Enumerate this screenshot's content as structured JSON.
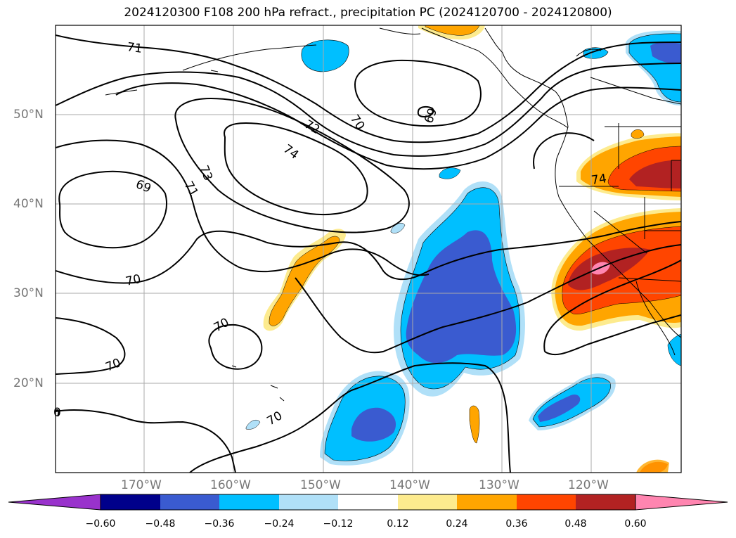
{
  "title": "2024120300 F108 200 hPa refract., precipitation PC (2024120700 - 2024120800)",
  "lat_labels": [
    "50°N",
    "40°N",
    "30°N",
    "20°N"
  ],
  "lon_labels": [
    "170°W",
    "160°W",
    "150°W",
    "140°W",
    "130°W",
    "120°W"
  ],
  "contour_labels": [
    "71",
    "72",
    "73",
    "74",
    "70",
    "69",
    "71",
    "69",
    "70",
    "70",
    "70",
    "70",
    "74",
    "0"
  ],
  "colorbar": {
    "ticks": [
      "−0.60",
      "−0.48",
      "−0.36",
      "−0.24",
      "−0.12",
      "0.12",
      "0.24",
      "0.36",
      "0.48",
      "0.60"
    ],
    "colors": [
      "#9932cc",
      "#00008b",
      "#3a5bd0",
      "#00bfff",
      "#b0e0f8",
      "#ffffff",
      "#fdeb8e",
      "#ffa500",
      "#ff4500",
      "#b22222",
      "#ff85b0"
    ]
  },
  "colors": {
    "contour": "#000000",
    "grid": "#aaaaaa"
  }
}
